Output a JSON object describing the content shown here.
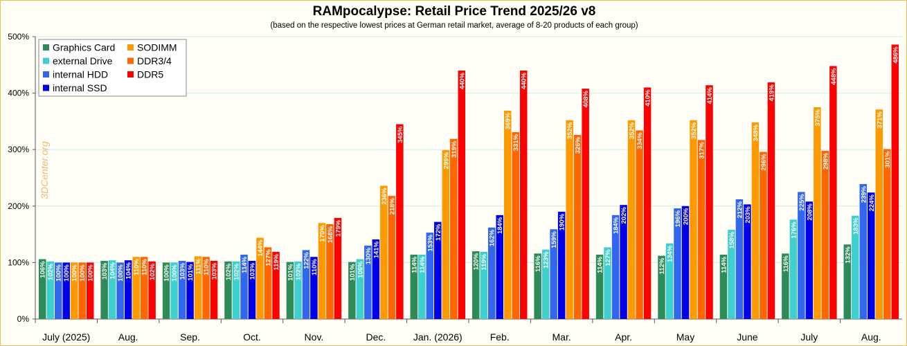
{
  "title": "RAMpocalypse: Retail Price Trend 2025/26 v8",
  "subtitle": "(based on the respective lowest prices at German retail market, average of 8-20 products of each group)",
  "watermark": "3DCenter.org",
  "colors": {
    "background": "#fffff8",
    "frame": "#f0c050",
    "gridline": "#c8ecec",
    "watermark": "#f0b870"
  },
  "chart_data": {
    "type": "bar",
    "categories": [
      "July (2025)",
      "Aug.",
      "Sep.",
      "Oct.",
      "Nov.",
      "Dec.",
      "Jan. (2026)",
      "Feb.",
      "Mar.",
      "Apr.",
      "May",
      "June",
      "July",
      "Aug."
    ],
    "y_ticks": [
      "0%",
      "100%",
      "200%",
      "300%",
      "400%",
      "500%"
    ],
    "ylim": [
      0,
      500
    ],
    "grid": true,
    "legend_position": "top-left",
    "series": [
      {
        "name": "Graphics Card",
        "color": "#2e8b57",
        "values": [
          106,
          103,
          100,
          102,
          101,
          101,
          114,
          120,
          116,
          114,
          112,
          114,
          116,
          132
        ]
      },
      {
        "name": "external Drive",
        "color": "#40cfcf",
        "values": [
          102,
          104,
          100,
          102,
          102,
          106,
          114,
          119,
          123,
          127,
          134,
          158,
          176,
          183
        ]
      },
      {
        "name": "internal HDD",
        "color": "#3366ee",
        "values": [
          100,
          100,
          103,
          114,
          122,
          130,
          153,
          162,
          159,
          184,
          196,
          212,
          225,
          239
        ]
      },
      {
        "name": "internal SSD",
        "color": "#0000e6",
        "values": [
          100,
          104,
          101,
          103,
          110,
          141,
          172,
          184,
          190,
          202,
          200,
          203,
          208,
          224
        ]
      },
      {
        "name": "SODIMM",
        "color": "#ff9900",
        "values": [
          100,
          110,
          111,
          144,
          170,
          236,
          299,
          369,
          352,
          352,
          352,
          348,
          375,
          371
        ]
      },
      {
        "name": "DDR3/4",
        "color": "#ff6600",
        "values": [
          100,
          110,
          110,
          127,
          168,
          218,
          319,
          331,
          326,
          334,
          317,
          296,
          298,
          301
        ]
      },
      {
        "name": "DDR5",
        "color": "#ff0000",
        "values": [
          100,
          102,
          103,
          119,
          179,
          345,
          440,
          440,
          408,
          410,
          414,
          419,
          448,
          486
        ]
      }
    ],
    "value_labels": [
      [
        "106%",
        "103%",
        "100%",
        "102%",
        "101%",
        "101%",
        "114%",
        "120%",
        "116%",
        "114%",
        "112%",
        "114%",
        "116%",
        "132%"
      ],
      [
        "102%",
        "104%",
        "100%",
        "102%",
        "102%",
        "106%",
        "114%",
        "119%",
        "123%",
        "127%",
        "134%",
        "158%",
        "176%",
        "183%"
      ],
      [
        "100%",
        "100%",
        "103%",
        "114%",
        "122%",
        "130%",
        "153%",
        "162%",
        "159%",
        "184%",
        "196%",
        "212%",
        "225%",
        "239%"
      ],
      [
        "100%",
        "104%",
        "101%",
        "103%",
        "110%",
        "141%",
        "172%",
        "184%",
        "190%",
        "202%",
        "200%",
        "203%",
        "208%",
        "224%"
      ],
      [
        "100%",
        "110%",
        "111%",
        "144%",
        "170%",
        "236%",
        "299%",
        "369%",
        "352%",
        "352%",
        "352%",
        "348%",
        "375%",
        "371%"
      ],
      [
        "100%",
        "110%",
        "110%",
        "127%",
        "168%",
        "218%",
        "319%",
        "331%",
        "326%",
        "334%",
        "317%",
        "296%",
        "298%",
        "301%"
      ],
      [
        "100%",
        "102%",
        "103%",
        "119%",
        "179%",
        "345%",
        "440%",
        "440%",
        "408%",
        "410%",
        "414%",
        "419%",
        "448%",
        "486%"
      ]
    ]
  }
}
